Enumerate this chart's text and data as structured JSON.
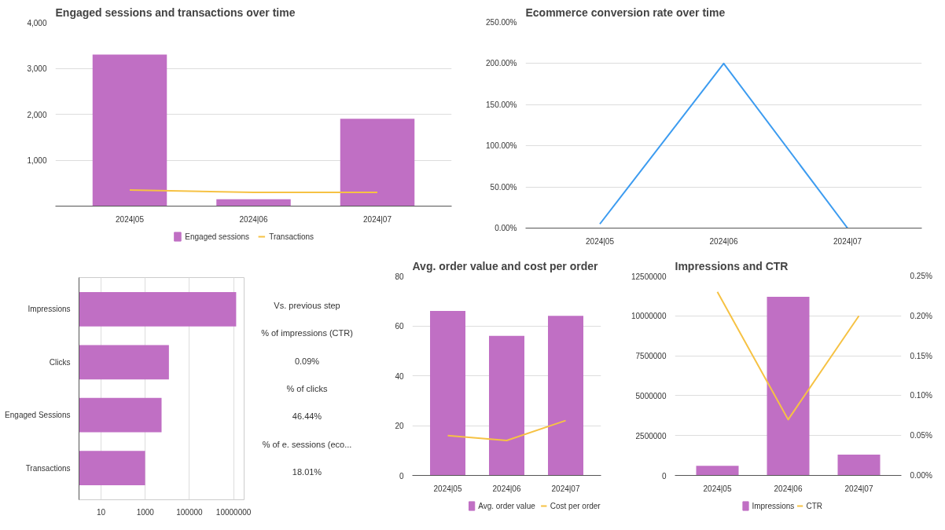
{
  "chart_data": [
    {
      "type": "bar",
      "title": "Engaged sessions and transactions over time",
      "categories": [
        "2024|05",
        "2024|06",
        "2024|07"
      ],
      "ylim": [
        0,
        4000
      ],
      "yticks": [
        {
          "value": 0,
          "label": null
        },
        {
          "value": 1000,
          "label": "1,000"
        },
        {
          "value": 2000,
          "label": "2,000"
        },
        {
          "value": 3000,
          "label": "3,000"
        },
        {
          "value": 4000,
          "label": "4,000"
        }
      ],
      "grid": "y",
      "legend": "bottom",
      "series": [
        {
          "name": "Engaged sessions",
          "color": "#c06fc4",
          "values": [
            3300,
            150,
            1900
          ]
        },
        {
          "name": "Transactions",
          "type": "line",
          "color": "#f6c244",
          "values": [
            350,
            300,
            300
          ]
        }
      ]
    },
    {
      "type": "line",
      "title": "Ecommerce conversion rate over time",
      "categories": [
        "2024|05",
        "2024|06",
        "2024|07"
      ],
      "ylim": [
        0,
        250
      ],
      "yticks": [
        {
          "value": 0,
          "label": "0.00%"
        },
        {
          "value": 50,
          "label": "50.00%"
        },
        {
          "value": 100,
          "label": "100.00%"
        },
        {
          "value": 150,
          "label": "150.00%"
        },
        {
          "value": 200,
          "label": "200.00%"
        },
        {
          "value": 250,
          "label": "250.00%"
        }
      ],
      "grid": "y",
      "series": [
        {
          "color": "#3d9cf0",
          "values": [
            5,
            200,
            0
          ]
        }
      ]
    },
    {
      "type": "bar",
      "orientation": "horizontal",
      "log": "x",
      "categories": [
        "Impressions",
        "Clicks",
        "Engaged Sessions",
        "Transactions"
      ],
      "xlim": [
        1,
        30000000
      ],
      "xticks": [
        10,
        1000,
        100000,
        10000000
      ],
      "grid": "x",
      "series": [
        {
          "color": "#c06fc4",
          "values": [
            13100000,
            11800,
            5480,
            987
          ]
        }
      ],
      "annotations": [
        "Vs. previous step",
        "% of impressions (CTR)",
        "0.09%",
        "% of clicks",
        "46.44%",
        "% of e. sessions (eco...",
        "18.01%"
      ]
    },
    {
      "type": "bar",
      "title": "Avg. order value and cost per order",
      "categories": [
        "2024|05",
        "2024|06",
        "2024|07"
      ],
      "ylim": [
        0,
        80
      ],
      "yticks": [
        0,
        20,
        40,
        60,
        80
      ],
      "grid": "y",
      "legend": "bottom",
      "series": [
        {
          "name": "Avg. order value",
          "color": "#c06fc4",
          "values": [
            66,
            56,
            64
          ]
        },
        {
          "name": "Cost per order",
          "type": "line",
          "color": "#f6c244",
          "values": [
            16,
            14,
            22
          ]
        }
      ]
    },
    {
      "type": "bar",
      "title": "Impressions and CTR",
      "categories": [
        "2024|05",
        "2024|06",
        "2024|07"
      ],
      "ylim": [
        0,
        12500000
      ],
      "yticks": [
        0,
        2500000,
        5000000,
        7500000,
        10000000,
        12500000
      ],
      "y2lim": [
        0,
        0.25
      ],
      "y2ticks": [
        {
          "value": 0,
          "label": "0.00%"
        },
        {
          "value": 0.05,
          "label": "0.05%"
        },
        {
          "value": 0.1,
          "label": "0.10%"
        },
        {
          "value": 0.15,
          "label": "0.15%"
        },
        {
          "value": 0.2,
          "label": "0.20%"
        },
        {
          "value": 0.25,
          "label": "0.25%"
        }
      ],
      "grid": "y",
      "legend": "bottom",
      "series": [
        {
          "name": "Impressions",
          "color": "#c06fc4",
          "values": [
            600000,
            11200000,
            1300000
          ]
        },
        {
          "name": "CTR",
          "type": "line",
          "axis": "y2",
          "color": "#f6c244",
          "values": [
            0.23,
            0.07,
            0.2
          ]
        }
      ]
    }
  ]
}
